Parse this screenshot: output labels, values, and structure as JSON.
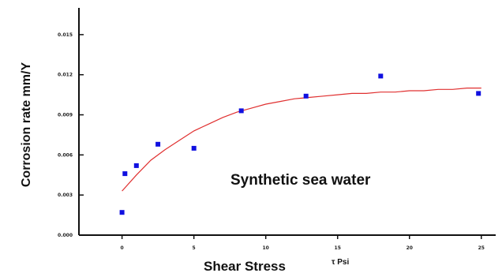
{
  "chart_data": {
    "type": "scatter",
    "xlabel": "Shear Stress",
    "xunit": "τ Psi",
    "ylabel": "Corrosion rate mm/Y",
    "annotation": "Synthetic sea water",
    "xlim": [
      -3,
      26
    ],
    "ylim": [
      0.0,
      0.017
    ],
    "x_ticks": [
      0,
      5,
      10,
      15,
      20,
      25
    ],
    "x_tick_labels": [
      "0",
      "5",
      "10",
      "15",
      "20",
      "25"
    ],
    "y_ticks": [
      0.0,
      0.003,
      0.006,
      0.009,
      0.012,
      0.015
    ],
    "y_tick_labels": [
      "0.000",
      "0.003",
      "0.006",
      "0.009",
      "0.012",
      "0.015"
    ],
    "grid": false,
    "legend": "none",
    "points": [
      {
        "x": 0.0,
        "y": 0.0017
      },
      {
        "x": 0.2,
        "y": 0.0046
      },
      {
        "x": 1.0,
        "y": 0.0052
      },
      {
        "x": 2.5,
        "y": 0.0068
      },
      {
        "x": 5.0,
        "y": 0.0065
      },
      {
        "x": 8.3,
        "y": 0.0093
      },
      {
        "x": 12.8,
        "y": 0.0104
      },
      {
        "x": 18.0,
        "y": 0.0119
      },
      {
        "x": 24.8,
        "y": 0.0106
      }
    ],
    "fit_curve": {
      "x": [
        0,
        1,
        2,
        3,
        4,
        5,
        6,
        7,
        8,
        9,
        10,
        11,
        12,
        13,
        14,
        15,
        16,
        17,
        18,
        19,
        20,
        21,
        22,
        23,
        24,
        25
      ],
      "y": [
        0.0033,
        0.0045,
        0.0056,
        0.0064,
        0.0071,
        0.0078,
        0.0083,
        0.0088,
        0.0092,
        0.0095,
        0.0098,
        0.01,
        0.0102,
        0.0103,
        0.0104,
        0.0105,
        0.0106,
        0.0106,
        0.0107,
        0.0107,
        0.0108,
        0.0108,
        0.0109,
        0.0109,
        0.011,
        0.011
      ]
    },
    "colors": {
      "points": "#1010e0",
      "fit_curve": "#e03030",
      "axes": "#111111"
    }
  }
}
